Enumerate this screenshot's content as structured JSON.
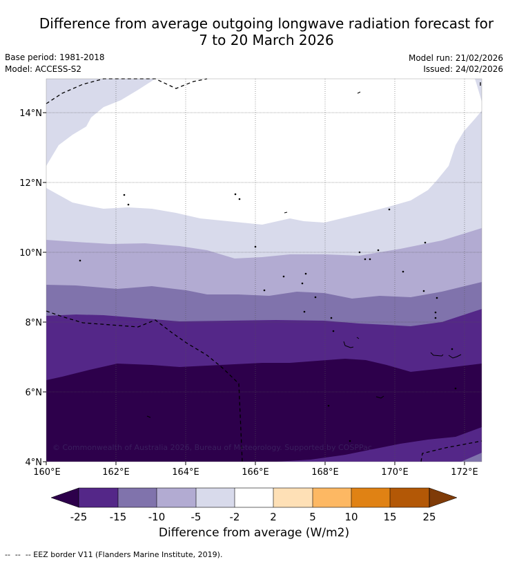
{
  "title": {
    "line1": "Difference from average outgoing longwave radiation forecast for",
    "line2": "7 to 20 March 2026"
  },
  "meta": {
    "base_period": "Base period: 1981-2018",
    "model": "Model: ACCESS-S2",
    "model_run": "Model run: 21/02/2026",
    "issued": "Issued: 24/02/2026"
  },
  "map": {
    "x_ticks": [
      "160°E",
      "162°E",
      "164°E",
      "166°E",
      "168°E",
      "170°E",
      "172°E"
    ],
    "y_ticks": [
      "14°N",
      "12°N",
      "10°N",
      "8°N",
      "6°N",
      "4°N"
    ],
    "copyright": "© Commonwealth of Australia 2026, Bureau of Meteorology. Supported by COSPPac"
  },
  "colorbar": {
    "labels": [
      "-25",
      "-15",
      "-10",
      "-5",
      "-2",
      "2",
      "5",
      "10",
      "15",
      "25"
    ],
    "title": "Difference from average (W/m2)",
    "colors": {
      "lt_-25": "#2d004b",
      "-25_-15": "#542788",
      "-15_-10": "#8073ac",
      "-10_-5": "#b2abd2",
      "-5_-2": "#d8daeb",
      "-2_2": "#ffffff",
      "2_5": "#fee0b6",
      "5_10": "#fdb863",
      "10_15": "#e08214",
      "15_25": "#b35806",
      "gt_25": "#7f3b08"
    }
  },
  "legend": {
    "eez_line": "--  --  -- EEZ border V11 (Flanders Marine Institute, 2019)."
  }
}
